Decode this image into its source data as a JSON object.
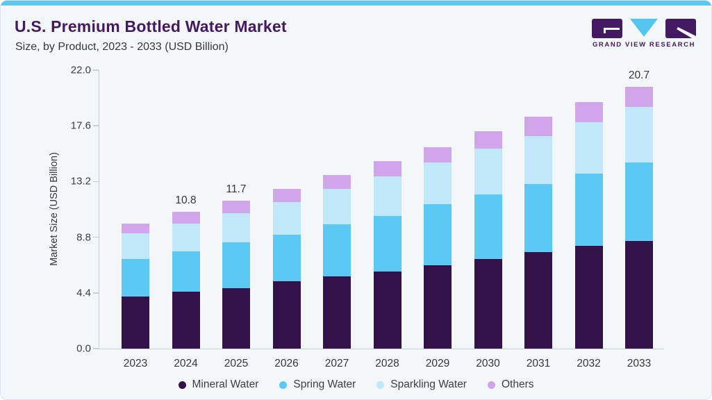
{
  "header": {
    "title": "U.S. Premium Bottled Water Market",
    "subtitle": "Size, by Product, 2023 - 2033 (USD Billion)"
  },
  "logo": {
    "text": "GRAND VIEW RESEARCH",
    "purple": "#441a63",
    "blue": "#55c6f0"
  },
  "colors": {
    "accent_top_strip": "#5ec7ee",
    "card_background": "#f3f7fa",
    "card_border": "#d9e3ed",
    "title_text": "#45195f",
    "axis_line": "#c7d0d9",
    "axis_text": "#3b3e44"
  },
  "chart_data": {
    "type": "bar",
    "stacked": true,
    "title": "U.S. Premium Bottled Water Market Size, by Product, 2023 - 2033 (USD Billion)",
    "xlabel": "",
    "ylabel": "Market Size (USD Billion)",
    "ylim": [
      0,
      22
    ],
    "yticks": [
      0.0,
      4.4,
      8.8,
      13.2,
      17.6,
      22.0
    ],
    "grid": false,
    "legend_position": "bottom",
    "categories": [
      "2023",
      "2024",
      "2025",
      "2026",
      "2027",
      "2028",
      "2029",
      "2030",
      "2031",
      "2032",
      "2033"
    ],
    "series": [
      {
        "name": "Mineral Water",
        "color": "#331249",
        "values": [
          4.1,
          4.5,
          4.8,
          5.3,
          5.7,
          6.1,
          6.6,
          7.1,
          7.6,
          8.1,
          8.5
        ]
      },
      {
        "name": "Spring Water",
        "color": "#5bc9f4",
        "values": [
          3.0,
          3.2,
          3.6,
          3.7,
          4.1,
          4.4,
          4.8,
          5.1,
          5.4,
          5.7,
          6.2
        ]
      },
      {
        "name": "Sparkling Water",
        "color": "#c0e8f9",
        "values": [
          2.0,
          2.2,
          2.3,
          2.6,
          2.8,
          3.1,
          3.3,
          3.6,
          3.8,
          4.1,
          4.4
        ]
      },
      {
        "name": "Others",
        "color": "#d0a5e9",
        "values": [
          0.8,
          0.9,
          1.0,
          1.0,
          1.1,
          1.2,
          1.2,
          1.4,
          1.5,
          1.6,
          1.6
        ]
      }
    ],
    "total_labels": {
      "2024": "10.8",
      "2025": "11.7",
      "2033": "20.7"
    }
  }
}
